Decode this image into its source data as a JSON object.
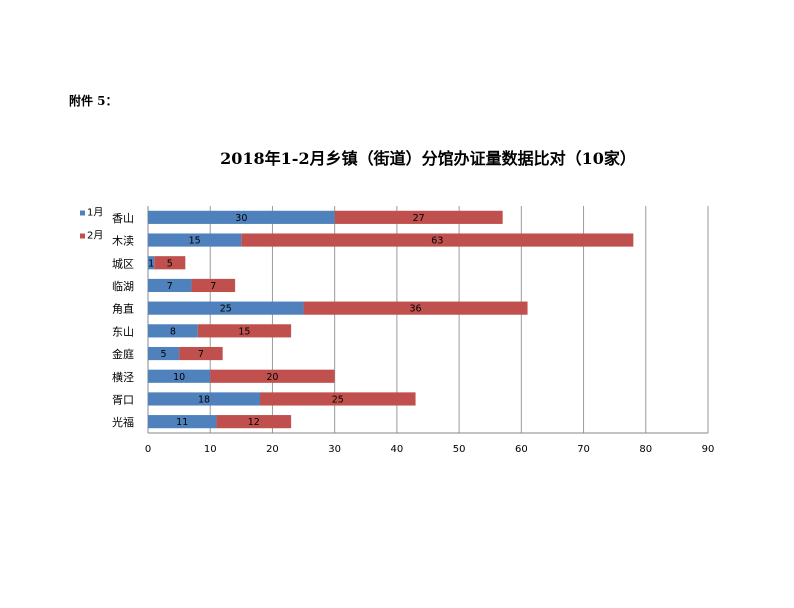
{
  "page": {
    "attachment_label": "附件 5："
  },
  "chart_data": {
    "type": "bar",
    "orientation": "horizontal",
    "stacked": true,
    "title": "2018年1-2月乡镇（街道）分馆办证量数据比对（10家）",
    "categories": [
      "香山",
      "木渎",
      "城区",
      "临湖",
      "角直",
      "东山",
      "金庭",
      "横泾",
      "胥口",
      "光福"
    ],
    "series": [
      {
        "name": "1月",
        "values": [
          30,
          15,
          1,
          7,
          25,
          8,
          5,
          10,
          18,
          11
        ],
        "color": "#4f81bd"
      },
      {
        "name": "2月",
        "values": [
          27,
          63,
          5,
          7,
          36,
          15,
          7,
          20,
          25,
          12
        ],
        "color": "#c0504d"
      }
    ],
    "xlim": [
      0,
      90
    ],
    "xticks": [
      0,
      10,
      20,
      30,
      40,
      50,
      60,
      70,
      80,
      90
    ],
    "grid": true,
    "legend": "top-left",
    "xlabel": "",
    "ylabel": ""
  }
}
